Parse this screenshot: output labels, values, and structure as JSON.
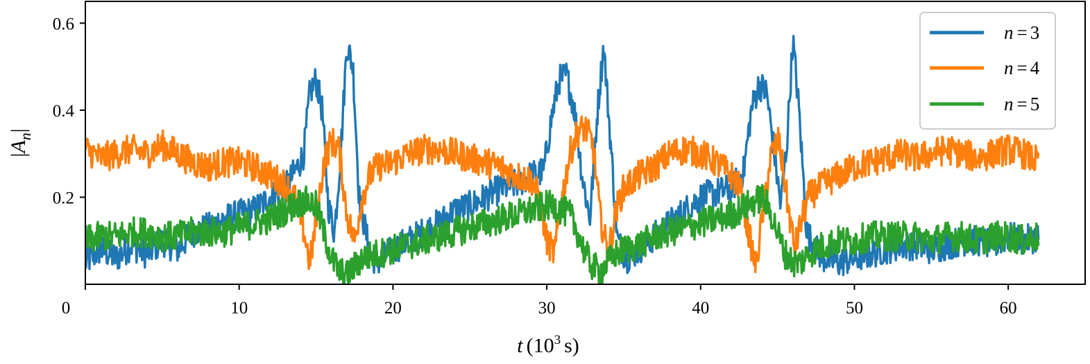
{
  "chart_data": {
    "type": "line",
    "title": "",
    "xlabel": {
      "var": "t",
      "unit_prefix": "(10",
      "unit_exp": "3",
      "unit_suffix": "s)"
    },
    "ylabel": {
      "var": "A",
      "sub": "n",
      "wrap": "|"
    },
    "xlim": [
      0,
      65
    ],
    "ylim": [
      0,
      0.65
    ],
    "xticks": [
      0,
      10,
      20,
      30,
      40,
      50,
      60
    ],
    "xtick_labels": [
      "0",
      "10",
      "20",
      "30",
      "40",
      "50",
      "60"
    ],
    "yticks": [
      0.2,
      0.4,
      0.6
    ],
    "ytick_labels": [
      "0.2",
      "0.4",
      "0.6"
    ],
    "grid": false,
    "legend_position": "top-right",
    "series": [
      {
        "name": {
          "var": "n",
          "eq": "=",
          "val": "3"
        },
        "color": "#1f77b4",
        "x": [
          0,
          1,
          2,
          3,
          4,
          5,
          6,
          7,
          8,
          9,
          10,
          11,
          12,
          13,
          13.8,
          14.2,
          14.6,
          15.0,
          15.4,
          15.8,
          16.2,
          16.6,
          17.0,
          17.4,
          17.8,
          18.5,
          19,
          20,
          21,
          22,
          23,
          24,
          25,
          26,
          27,
          28,
          29,
          29.8,
          30.3,
          30.8,
          31.3,
          31.8,
          32.3,
          32.8,
          33.3,
          33.7,
          34.1,
          34.6,
          35.2,
          36,
          37,
          38,
          39,
          40,
          41,
          42,
          42.8,
          43.3,
          43.8,
          44.3,
          44.8,
          45.2,
          45.6,
          46.0,
          46.4,
          46.9,
          47.5,
          48,
          49,
          50,
          51,
          52,
          53,
          54,
          55,
          56,
          57,
          58,
          59,
          60,
          61,
          62
        ],
        "y": [
          0.05,
          0.08,
          0.06,
          0.09,
          0.07,
          0.1,
          0.08,
          0.12,
          0.13,
          0.15,
          0.16,
          0.17,
          0.2,
          0.22,
          0.27,
          0.3,
          0.44,
          0.47,
          0.4,
          0.18,
          0.12,
          0.3,
          0.55,
          0.5,
          0.2,
          0.07,
          0.05,
          0.08,
          0.1,
          0.12,
          0.14,
          0.17,
          0.18,
          0.2,
          0.22,
          0.23,
          0.25,
          0.26,
          0.38,
          0.47,
          0.48,
          0.4,
          0.25,
          0.15,
          0.4,
          0.55,
          0.35,
          0.1,
          0.06,
          0.08,
          0.11,
          0.14,
          0.17,
          0.2,
          0.21,
          0.22,
          0.26,
          0.4,
          0.46,
          0.44,
          0.3,
          0.18,
          0.32,
          0.56,
          0.4,
          0.12,
          0.08,
          0.06,
          0.05,
          0.06,
          0.07,
          0.08,
          0.09,
          0.09,
          0.08,
          0.09,
          0.1,
          0.1,
          0.09,
          0.11,
          0.1,
          0.11
        ]
      },
      {
        "name": {
          "var": "n",
          "eq": "=",
          "val": "4"
        },
        "color": "#ff7f0e",
        "x": [
          0,
          1,
          2,
          3,
          4,
          5,
          6,
          7,
          8,
          9,
          10,
          11,
          12,
          13,
          13.6,
          14.1,
          14.6,
          15.0,
          15.5,
          16.0,
          16.5,
          17.0,
          17.5,
          18.0,
          18.5,
          19,
          20,
          21,
          22,
          23,
          24,
          25,
          26,
          27,
          28,
          29,
          29.5,
          30.0,
          30.5,
          31.0,
          31.5,
          32.0,
          32.5,
          33.0,
          33.5,
          34.0,
          34.5,
          35,
          36,
          37,
          38,
          39,
          40,
          41,
          42,
          42.6,
          43.1,
          43.6,
          44.1,
          44.6,
          45.1,
          45.6,
          46.1,
          46.6,
          47,
          48,
          49,
          50,
          51,
          52,
          53,
          54,
          55,
          56,
          57,
          58,
          59,
          60,
          61,
          62
        ],
        "y": [
          0.31,
          0.29,
          0.3,
          0.31,
          0.3,
          0.32,
          0.3,
          0.28,
          0.27,
          0.28,
          0.28,
          0.27,
          0.25,
          0.23,
          0.2,
          0.14,
          0.05,
          0.14,
          0.28,
          0.33,
          0.31,
          0.16,
          0.1,
          0.2,
          0.25,
          0.27,
          0.28,
          0.3,
          0.31,
          0.31,
          0.3,
          0.29,
          0.28,
          0.27,
          0.25,
          0.24,
          0.2,
          0.1,
          0.07,
          0.2,
          0.3,
          0.35,
          0.36,
          0.32,
          0.15,
          0.07,
          0.17,
          0.22,
          0.25,
          0.27,
          0.3,
          0.31,
          0.3,
          0.28,
          0.25,
          0.22,
          0.12,
          0.04,
          0.18,
          0.3,
          0.33,
          0.2,
          0.08,
          0.15,
          0.2,
          0.23,
          0.25,
          0.27,
          0.28,
          0.29,
          0.3,
          0.29,
          0.3,
          0.31,
          0.3,
          0.29,
          0.3,
          0.31,
          0.3,
          0.28
        ]
      },
      {
        "name": {
          "var": "n",
          "eq": "=",
          "val": "5"
        },
        "color": "#2ca02c",
        "x": [
          0,
          1,
          2,
          3,
          4,
          5,
          6,
          7,
          8,
          9,
          10,
          11,
          12,
          13,
          14,
          14.5,
          15,
          15.5,
          16,
          16.5,
          17,
          17.5,
          18,
          19,
          20,
          21,
          22,
          23,
          24,
          25,
          26,
          27,
          28,
          29,
          30,
          30.5,
          31,
          31.5,
          32,
          32.5,
          33,
          33.5,
          34,
          34.5,
          35,
          36,
          37,
          38,
          39,
          40,
          41,
          42,
          43,
          43.5,
          44,
          44.5,
          45,
          45.5,
          46,
          46.5,
          47,
          48,
          49,
          50,
          51,
          52,
          53,
          54,
          55,
          56,
          57,
          58,
          59,
          60,
          61,
          62
        ],
        "y": [
          0.1,
          0.11,
          0.11,
          0.12,
          0.12,
          0.11,
          0.11,
          0.12,
          0.12,
          0.12,
          0.13,
          0.14,
          0.15,
          0.17,
          0.19,
          0.19,
          0.18,
          0.12,
          0.06,
          0.03,
          0.02,
          0.04,
          0.06,
          0.07,
          0.08,
          0.09,
          0.1,
          0.11,
          0.12,
          0.13,
          0.14,
          0.15,
          0.16,
          0.17,
          0.18,
          0.18,
          0.17,
          0.16,
          0.12,
          0.07,
          0.04,
          0.03,
          0.05,
          0.07,
          0.08,
          0.09,
          0.11,
          0.12,
          0.13,
          0.14,
          0.15,
          0.16,
          0.18,
          0.19,
          0.2,
          0.17,
          0.12,
          0.07,
          0.05,
          0.05,
          0.07,
          0.09,
          0.1,
          0.1,
          0.11,
          0.11,
          0.11,
          0.11,
          0.1,
          0.11,
          0.11,
          0.1,
          0.11,
          0.11,
          0.1,
          0.11
        ]
      }
    ]
  }
}
